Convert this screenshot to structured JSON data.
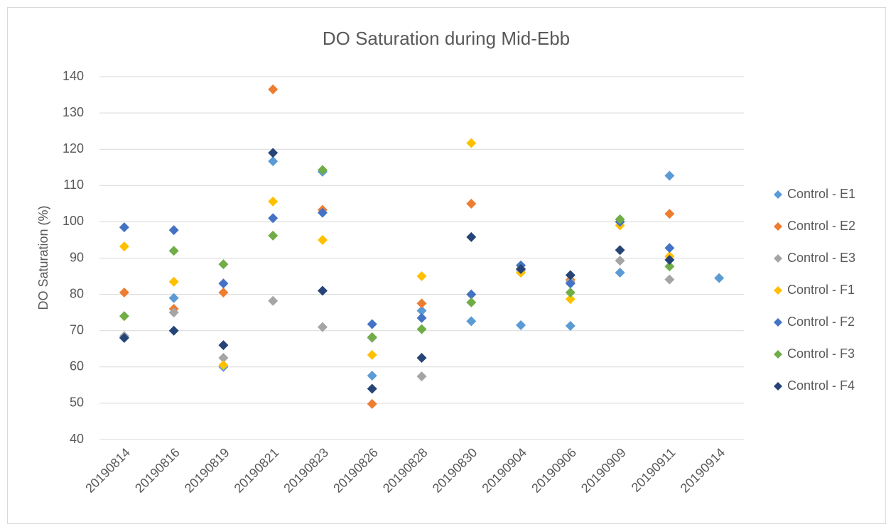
{
  "chart_data": {
    "type": "scatter",
    "title": "DO Saturation during Mid-Ebb",
    "y_label": "DO Saturation (%)",
    "categories": [
      "20190814",
      "20190816",
      "20190819",
      "20190821",
      "20190823",
      "20190826",
      "20190828",
      "20190830",
      "20190904",
      "20190906",
      "20190909",
      "20190911",
      "20190914"
    ],
    "ylim": [
      40,
      140
    ],
    "yticks": [
      40,
      50,
      60,
      70,
      80,
      90,
      100,
      110,
      120,
      130,
      140
    ],
    "grid": true,
    "legend": "right",
    "series": [
      {
        "name": "Control - E1",
        "color": "#5B9BD5",
        "values": [
          68,
          79,
          60,
          116.7,
          113.8,
          57.6,
          75.5,
          72.6,
          71.5,
          71.3,
          86,
          112.7,
          84.5
        ]
      },
      {
        "name": "Control - E2",
        "color": "#ED7D31",
        "values": [
          80.5,
          76,
          80.5,
          136.5,
          103.3,
          49.8,
          77.5,
          105,
          87,
          84,
          100,
          102.2,
          null
        ]
      },
      {
        "name": "Control - E3",
        "color": "#A5A5A5",
        "values": [
          68.5,
          75,
          62.5,
          78.2,
          71,
          68,
          57.4,
          null,
          86.5,
          83.5,
          89.3,
          84.1,
          null
        ]
      },
      {
        "name": "Control - F1",
        "color": "#FFC000",
        "values": [
          93.2,
          83.5,
          60.5,
          105.6,
          95,
          63.3,
          85,
          121.7,
          86,
          78.7,
          99,
          90.5,
          null
        ]
      },
      {
        "name": "Control - F2",
        "color": "#4472C4",
        "values": [
          98.5,
          97.7,
          83,
          101,
          102.5,
          71.8,
          73.5,
          80,
          88,
          83,
          100,
          92.8,
          null
        ]
      },
      {
        "name": "Control - F3",
        "color": "#70AD47",
        "values": [
          74,
          92,
          88.3,
          96.2,
          114.3,
          68.2,
          70.4,
          77.8,
          87,
          80.5,
          100.7,
          87.7,
          null
        ]
      },
      {
        "name": "Control - F4",
        "color": "#264478",
        "values": [
          68,
          70,
          66,
          119,
          81,
          54,
          62.5,
          95.8,
          87,
          85.3,
          92.2,
          89.5,
          null
        ]
      }
    ]
  }
}
